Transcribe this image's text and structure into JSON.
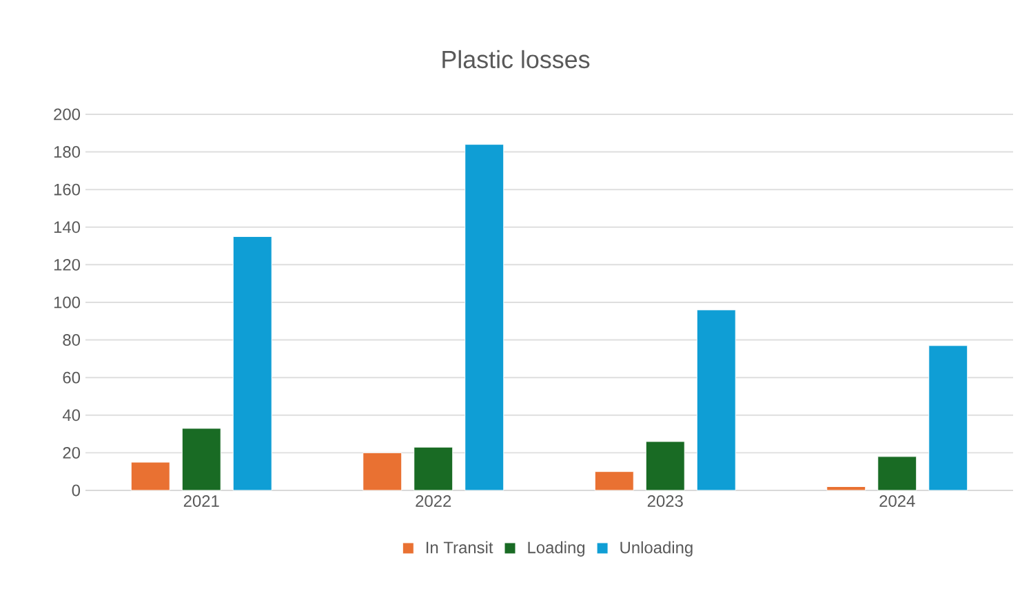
{
  "chart_data": {
    "type": "bar",
    "title": "Plastic losses",
    "categories": [
      "2021",
      "2022",
      "2023",
      "2024"
    ],
    "series": [
      {
        "name": "In Transit",
        "color": "#e97132",
        "values": [
          15,
          20,
          10,
          2
        ]
      },
      {
        "name": "Loading",
        "color": "#196b24",
        "values": [
          33,
          23,
          26,
          18
        ]
      },
      {
        "name": "Unloading",
        "color": "#0f9ed5",
        "values": [
          135,
          184,
          96,
          77
        ]
      }
    ],
    "ylim": [
      0,
      200
    ],
    "yticks": [
      0,
      20,
      40,
      60,
      80,
      100,
      120,
      140,
      160,
      180,
      200
    ],
    "grid": "y",
    "legend": "bottom"
  }
}
